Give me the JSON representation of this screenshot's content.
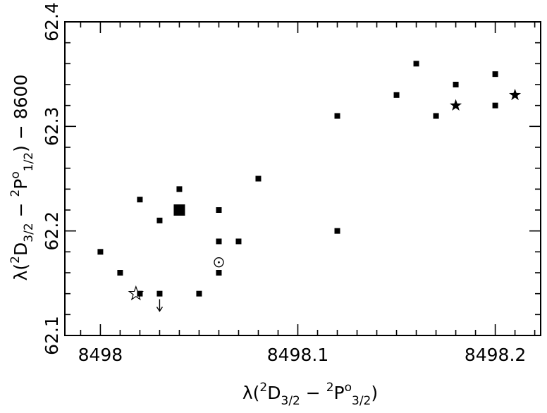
{
  "chart_data": {
    "type": "scatter",
    "title": "",
    "xlim": [
      8497.982,
      8498.223
    ],
    "ylim": [
      62.1,
      62.4
    ],
    "x_ticks": [
      8498,
      8498.1,
      8498.2
    ],
    "x_tick_labels": [
      "8498",
      "8498.1",
      "8498.2"
    ],
    "y_ticks": [
      62.1,
      62.2,
      62.3,
      62.4
    ],
    "y_tick_labels": [
      "62.1",
      "62.2",
      "62.3",
      "62.4"
    ],
    "xlabel": {
      "prefix": "λ(",
      "sup1": "2",
      "term1": "D",
      "sub1": "3/2",
      "separator": " − ",
      "sup2": "2",
      "term2": "P",
      "sup2b": "o",
      "sub2": "3/2",
      "suffix": ")"
    },
    "ylabel": {
      "prefix": "λ(",
      "sup1": "2",
      "term1": "D",
      "sub1": "3/2",
      "separator": " − ",
      "sup2": "2",
      "term2": "P",
      "sup2b": "o",
      "sub2": "1/2",
      "suffix": ") − 8600"
    },
    "grid": false,
    "legend": "none",
    "series": [
      {
        "marker": "small-square",
        "points": [
          [
            8498.0,
            62.18
          ],
          [
            8498.01,
            62.16
          ],
          [
            8498.02,
            62.23
          ],
          [
            8498.02,
            62.14
          ],
          [
            8498.03,
            62.21
          ],
          [
            8498.03,
            62.14
          ],
          [
            8498.04,
            62.24
          ],
          [
            8498.05,
            62.14
          ],
          [
            8498.06,
            62.22
          ],
          [
            8498.06,
            62.19
          ],
          [
            8498.06,
            62.16
          ],
          [
            8498.07,
            62.19
          ],
          [
            8498.08,
            62.25
          ],
          [
            8498.12,
            62.31
          ],
          [
            8498.12,
            62.2
          ],
          [
            8498.15,
            62.33
          ],
          [
            8498.16,
            62.36
          ],
          [
            8498.17,
            62.31
          ],
          [
            8498.18,
            62.34
          ],
          [
            8498.2,
            62.35
          ],
          [
            8498.2,
            62.32
          ]
        ]
      },
      {
        "marker": "large-square",
        "points": [
          [
            8498.04,
            62.22
          ]
        ]
      },
      {
        "marker": "sun-symbol",
        "points": [
          [
            8498.06,
            62.17
          ]
        ]
      },
      {
        "marker": "open-star",
        "points": [
          [
            8498.018,
            62.14
          ]
        ]
      },
      {
        "marker": "filled-star",
        "points": [
          [
            8498.18,
            62.32
          ],
          [
            8498.21,
            62.33
          ]
        ]
      },
      {
        "marker": "upper-limit-arrow",
        "points": [
          [
            8498.03,
            62.13
          ]
        ]
      }
    ]
  }
}
